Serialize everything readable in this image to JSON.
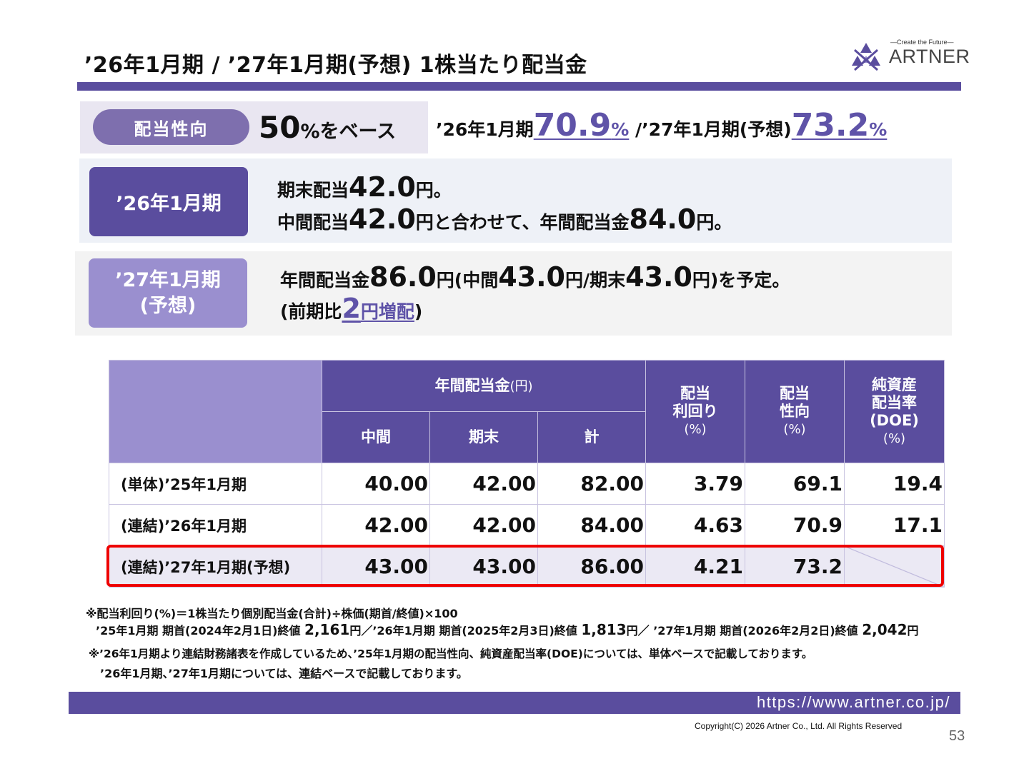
{
  "title": "’26年1月期 / ’27年1月期(予想) 1株当たり配当金",
  "logo": {
    "tagline": "—Create the Future—",
    "name": "ARTNER"
  },
  "policy": {
    "label": "配当性向",
    "base_value": "50",
    "base_suffix": "%をベース",
    "actual_prefix": "’26年1月期",
    "actual_value": "70.9",
    "actual_unit": "%",
    "forecast_prefix": " /’27年1月期(予想)",
    "forecast_value": "73.2",
    "forecast_unit": "%"
  },
  "fy26": {
    "label": "’26年1月期",
    "l1_a": "期末配当",
    "l1_b": "42.0",
    "l1_c": "円。",
    "l2_a": "中間配当",
    "l2_b": "42.0",
    "l2_c": "円と合わせて、年間配当金",
    "l2_d": "84.0",
    "l2_e": "円。"
  },
  "fy27": {
    "label1": "’27年1月期",
    "label2": "(予想)",
    "l1_a": "年間配当金",
    "l1_b": "86.0",
    "l1_c": "円(中間",
    "l1_d": "43.0",
    "l1_e": "円/期末",
    "l1_f": "43.0",
    "l1_g": "円)を予定。",
    "l2_a": "(前期比",
    "l2_b": "2",
    "l2_c": "円増配",
    "l2_d": ")"
  },
  "table": {
    "annual_header": "年間配当金",
    "annual_unit": "(円)",
    "sub_headers": [
      "中間",
      "期末",
      "計"
    ],
    "yield_header_1": "配当",
    "yield_header_2": "利回り",
    "yield_unit": "(%)",
    "payout_header_1": "配当",
    "payout_header_2": "性向",
    "payout_unit": "(%)",
    "doe_header_1": "純資産",
    "doe_header_2": "配当率",
    "doe_header_3": "(DOE)",
    "doe_unit": "(%)",
    "rows": [
      {
        "label": "(単体)’25年1月期",
        "interim": "40.00",
        "year_end": "42.00",
        "total": "82.00",
        "yield": "3.79",
        "payout": "69.1",
        "doe": "19.4"
      },
      {
        "label": "(連結)’26年1月期",
        "interim": "42.00",
        "year_end": "42.00",
        "total": "84.00",
        "yield": "4.63",
        "payout": "70.9",
        "doe": "17.1"
      },
      {
        "label": "(連結)’27年1月期(予想)",
        "interim": "43.00",
        "year_end": "43.00",
        "total": "86.00",
        "yield": "4.21",
        "payout": "73.2",
        "doe": ""
      }
    ]
  },
  "notes": {
    "n1": "※配当利回り(%)＝1株当たり個別配当金(合計)÷株価(期首/終値)×100",
    "n2_a": "’25年1月期 期首(2024年2月1日)終値 ",
    "n2_p1": "2,161",
    "n2_b": "円／’26年1月期 期首(2025年2月3日)終値 ",
    "n2_p2": "1,813",
    "n2_c": "円／ ’27年1月期 期首(2026年2月2日)終値 ",
    "n2_p3": "2,042",
    "n2_d": "円",
    "n3": "※’26年1月期より連結財務諸表を作成しているため、’25年1月期の配当性向、純資産配当率(DOE)については、単体ベースで記載しております。",
    "n4": "’26年1月期、’27年1月期については、連結ベースで記載しております。"
  },
  "footer": {
    "url": "https://www.artner.co.jp/",
    "copyright": "Copyright(C) 2026 Artner Co., Ltd. All Rights Reserved",
    "page": "53"
  },
  "colors": {
    "primary": "#5a4d9e",
    "light": "#9a8fcf",
    "accent": "#5f53a8",
    "highlight": "#ee0000"
  }
}
